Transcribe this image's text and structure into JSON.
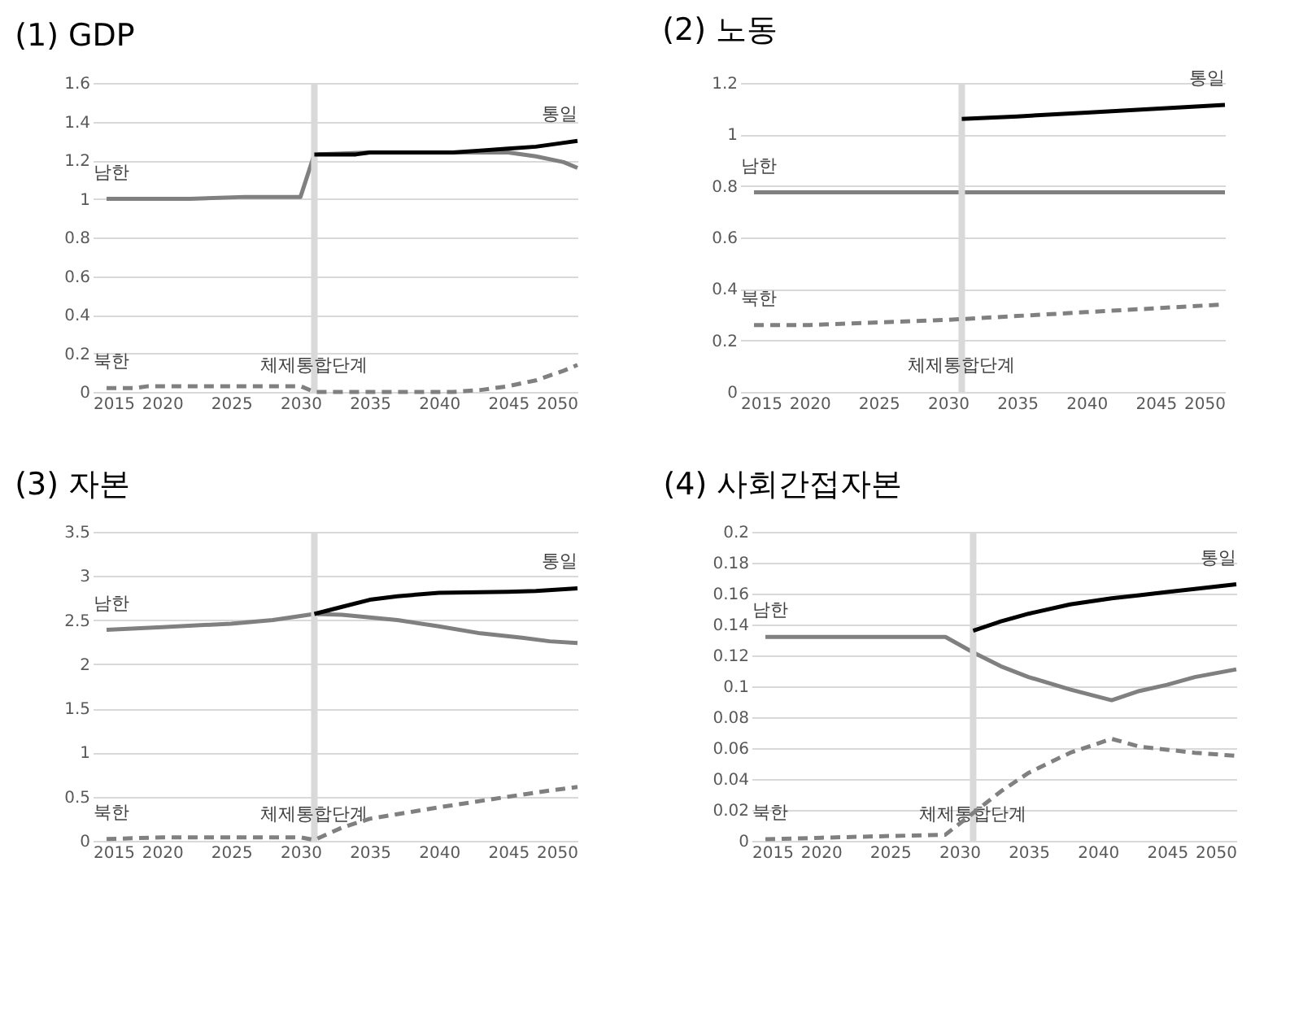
{
  "chart_data": [
    {
      "type": "line",
      "title": "(1) GDP",
      "xlim": [
        2015,
        2050
      ],
      "xticks": [
        2015,
        2020,
        2025,
        2030,
        2035,
        2040,
        2045,
        2050
      ],
      "ylim": [
        0,
        1.6
      ],
      "yticks": [
        0,
        0.2,
        0.4,
        0.6,
        0.8,
        1,
        1.2,
        1.4,
        1.6
      ],
      "grid": "y",
      "ref_lines": [
        {
          "axis": "x",
          "value": 2031,
          "label": "체제통합단계",
          "color": "#d9d9d9"
        }
      ],
      "series": [
        {
          "name": "남한",
          "color": "#808080",
          "line_style": "solid",
          "x": [
            2016,
            2020,
            2022,
            2026,
            2028,
            2030,
            2031,
            2035,
            2040,
            2043,
            2045,
            2047,
            2049,
            2050
          ],
          "values": [
            1.0,
            1.0,
            1.0,
            1.01,
            1.01,
            1.01,
            1.23,
            1.24,
            1.24,
            1.24,
            1.24,
            1.22,
            1.19,
            1.16
          ]
        },
        {
          "name": "북한",
          "color": "#808080",
          "line_style": "dashed",
          "x": [
            2016,
            2018,
            2019,
            2030,
            2031,
            2035,
            2038,
            2041,
            2043,
            2045,
            2047,
            2049,
            2050
          ],
          "values": [
            0.02,
            0.02,
            0.03,
            0.03,
            0.0,
            0.0,
            0.0,
            0.0,
            0.01,
            0.03,
            0.06,
            0.11,
            0.14
          ]
        },
        {
          "name": "통일",
          "color": "#000000",
          "line_style": "solid",
          "x": [
            2031,
            2034,
            2035,
            2040,
            2041,
            2043,
            2045,
            2047,
            2049,
            2050
          ],
          "values": [
            1.23,
            1.23,
            1.24,
            1.24,
            1.24,
            1.25,
            1.26,
            1.27,
            1.29,
            1.3
          ]
        }
      ]
    },
    {
      "type": "line",
      "title": "(2) 노동",
      "xlim": [
        2015,
        2050
      ],
      "xticks": [
        2015,
        2020,
        2025,
        2030,
        2035,
        2040,
        2045,
        2050
      ],
      "ylim": [
        0,
        1.2
      ],
      "yticks": [
        0,
        0.2,
        0.4,
        0.6,
        0.8,
        1,
        1.2
      ],
      "grid": "y",
      "ref_lines": [
        {
          "axis": "x",
          "value": 2031,
          "label": "체제통합단계",
          "color": "#d9d9d9"
        }
      ],
      "series": [
        {
          "name": "남한",
          "color": "#808080",
          "line_style": "solid",
          "x": [
            2016,
            2050
          ],
          "values": [
            0.775,
            0.775
          ]
        },
        {
          "name": "북한",
          "color": "#808080",
          "line_style": "dashed",
          "x": [
            2016,
            2020,
            2025,
            2030,
            2035,
            2040,
            2045,
            2050
          ],
          "values": [
            0.26,
            0.26,
            0.27,
            0.28,
            0.295,
            0.31,
            0.325,
            0.34
          ]
        },
        {
          "name": "통일",
          "color": "#000000",
          "line_style": "solid",
          "x": [
            2031,
            2035,
            2040,
            2045,
            2050
          ],
          "values": [
            1.06,
            1.07,
            1.085,
            1.1,
            1.115
          ]
        }
      ]
    },
    {
      "type": "line",
      "title": "(3) 자본",
      "xlim": [
        2015,
        2050
      ],
      "xticks": [
        2015,
        2020,
        2025,
        2030,
        2035,
        2040,
        2045,
        2050
      ],
      "ylim": [
        0,
        3.5
      ],
      "yticks": [
        0,
        0.5,
        1,
        1.5,
        2,
        2.5,
        3,
        3.5
      ],
      "grid": "y",
      "ref_lines": [
        {
          "axis": "x",
          "value": 2031,
          "label": "체제통합단계",
          "color": "#d9d9d9"
        }
      ],
      "series": [
        {
          "name": "남한",
          "color": "#808080",
          "line_style": "solid",
          "x": [
            2016,
            2020,
            2025,
            2028,
            2031,
            2033,
            2035,
            2037,
            2040,
            2043,
            2046,
            2048,
            2050
          ],
          "values": [
            2.39,
            2.42,
            2.46,
            2.5,
            2.57,
            2.56,
            2.53,
            2.5,
            2.43,
            2.35,
            2.3,
            2.26,
            2.24
          ]
        },
        {
          "name": "북한",
          "color": "#808080",
          "line_style": "dashed",
          "x": [
            2016,
            2020,
            2030,
            2031,
            2033,
            2035,
            2040,
            2045,
            2048,
            2050
          ],
          "values": [
            0.02,
            0.04,
            0.04,
            0.01,
            0.15,
            0.25,
            0.38,
            0.5,
            0.57,
            0.61
          ]
        },
        {
          "name": "통일",
          "color": "#000000",
          "line_style": "solid",
          "x": [
            2031,
            2033,
            2035,
            2037,
            2040,
            2045,
            2047,
            2050
          ],
          "values": [
            2.57,
            2.65,
            2.73,
            2.77,
            2.81,
            2.82,
            2.83,
            2.86
          ]
        }
      ]
    },
    {
      "type": "line",
      "title": "(4) 사회간접자본",
      "xlim": [
        2015,
        2050
      ],
      "xticks": [
        2015,
        2020,
        2025,
        2030,
        2035,
        2040,
        2045,
        2050
      ],
      "ylim": [
        0,
        0.2
      ],
      "yticks": [
        0,
        0.02,
        0.04,
        0.06,
        0.08,
        0.1,
        0.12,
        0.14,
        0.16,
        0.18,
        0.2
      ],
      "grid": "y",
      "ref_lines": [
        {
          "axis": "x",
          "value": 2031,
          "label": "체제통합단계",
          "color": "#d9d9d9"
        }
      ],
      "series": [
        {
          "name": "남한",
          "color": "#808080",
          "line_style": "solid",
          "x": [
            2016,
            2029,
            2031,
            2033,
            2035,
            2038,
            2041,
            2043,
            2045,
            2047,
            2050
          ],
          "values": [
            0.132,
            0.132,
            0.122,
            0.113,
            0.106,
            0.098,
            0.091,
            0.097,
            0.101,
            0.106,
            0.111
          ]
        },
        {
          "name": "북한",
          "color": "#808080",
          "line_style": "dashed",
          "x": [
            2016,
            2020,
            2029,
            2031,
            2033,
            2035,
            2038,
            2041,
            2043,
            2045,
            2047,
            2050
          ],
          "values": [
            0.001,
            0.002,
            0.004,
            0.018,
            0.032,
            0.044,
            0.057,
            0.066,
            0.061,
            0.059,
            0.057,
            0.055
          ]
        },
        {
          "name": "통일",
          "color": "#000000",
          "line_style": "solid",
          "x": [
            2031,
            2033,
            2035,
            2038,
            2041,
            2043,
            2045,
            2047,
            2050
          ],
          "values": [
            0.136,
            0.142,
            0.147,
            0.153,
            0.157,
            0.159,
            0.161,
            0.163,
            0.166
          ]
        }
      ]
    }
  ]
}
